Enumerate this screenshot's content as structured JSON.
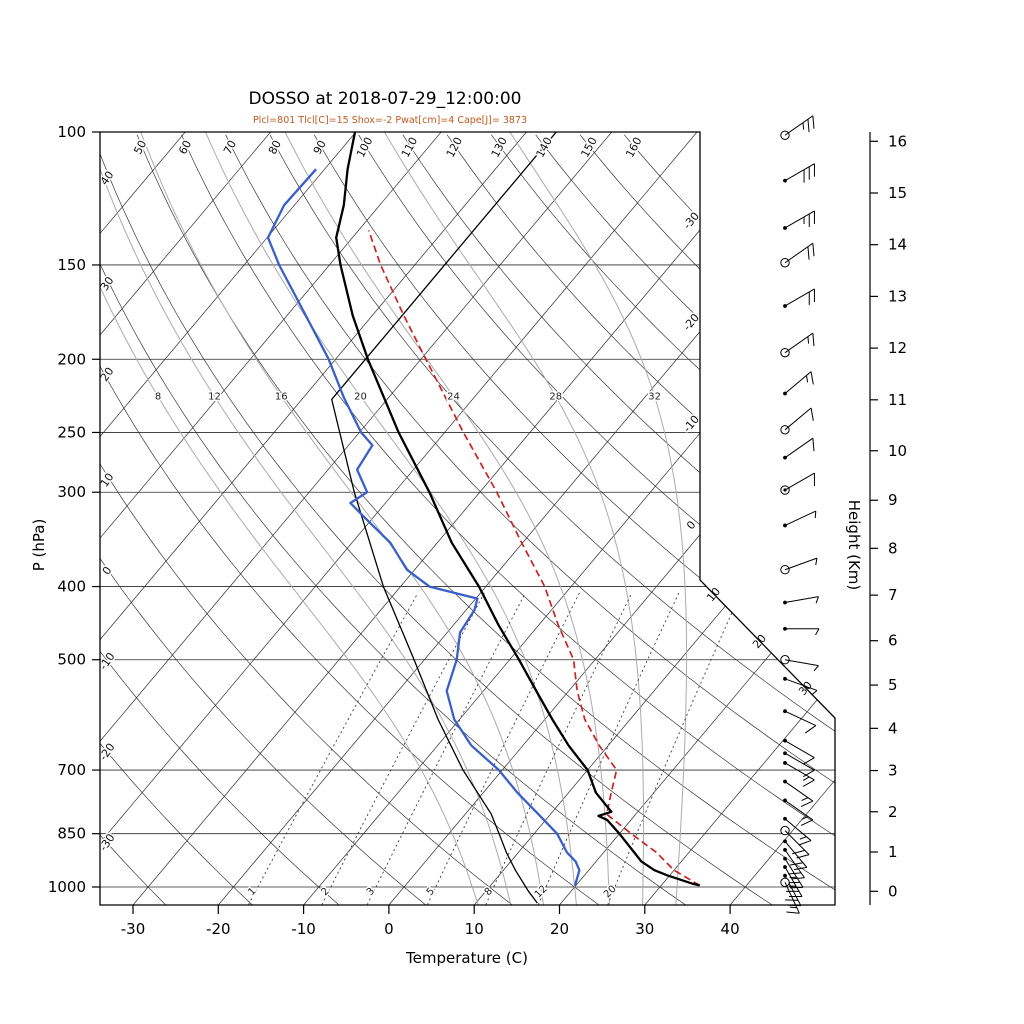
{
  "title": "DOSSO at 2018-07-29_12:00:00",
  "subtitle": "Plcl=801 Tlcl[C]=15 Shox=-2 Pwat[cm]=4 Cape[J]= 3873",
  "colors": {
    "temperature": "#000000",
    "dewpoint": "#3a5fc8",
    "parcel": "#cc2222",
    "std_atm": "#000000",
    "subtitle": "#c05a20",
    "moist_adiabat": "#ababab",
    "mixing_ratio": "#3c3c3c",
    "background_line": "#2b2b2b",
    "frame": "#000000"
  },
  "axes": {
    "pressure": {
      "title": "P (hPa)",
      "ticks": [
        100,
        150,
        200,
        250,
        300,
        400,
        500,
        700,
        850,
        1000
      ]
    },
    "temperature": {
      "title": "Temperature (C)",
      "ticks": [
        -30,
        -20,
        -10,
        0,
        10,
        20,
        30,
        40
      ]
    },
    "height": {
      "title": "Height (Km)",
      "ticks": [
        0,
        1,
        2,
        3,
        4,
        5,
        6,
        7,
        8,
        9,
        10,
        11,
        12,
        13,
        14,
        15,
        16
      ]
    }
  },
  "background": {
    "isotherm_min": -110,
    "isotherm_max": 40,
    "isotherm_step": 10,
    "isotherm_right_labels": [
      -30,
      -20,
      -10,
      0,
      10,
      20,
      30
    ],
    "dry_adiabat_min": -30,
    "dry_adiabat_max": 160,
    "dry_adiabat_step": 10,
    "moist_adiabats": [
      8,
      12,
      16,
      20,
      24,
      28,
      32
    ],
    "moist_label_pressure": 223,
    "mixing_ratios": [
      1,
      2,
      3,
      5,
      8,
      12,
      20
    ],
    "mixing_label_pressure": 1021
  },
  "chart_data": {
    "type": "skewt-log-p",
    "station": "DOSSO",
    "datetime": "2018-07-29_12:00:00",
    "indices": {
      "Plcl": 801,
      "Tlcl_C": 15,
      "Shox": -2,
      "Pwat_cm": 4,
      "Cape_J": 3873
    },
    "pressure_range_hPa": [
      100,
      1050
    ],
    "temperature_range_C": [
      -30,
      40
    ],
    "temperature_profile": [
      [
        995,
        34.5
      ],
      [
        990,
        33.5
      ],
      [
        965,
        29.7
      ],
      [
        950,
        27.7
      ],
      [
        925,
        25.3
      ],
      [
        900,
        23.6
      ],
      [
        850,
        20
      ],
      [
        815,
        17.2
      ],
      [
        805,
        15.8
      ],
      [
        795,
        16.9
      ],
      [
        750,
        13.2
      ],
      [
        700,
        10
      ],
      [
        650,
        5.4
      ],
      [
        600,
        0.9
      ],
      [
        550,
        -3.8
      ],
      [
        500,
        -8.9
      ],
      [
        450,
        -14.7
      ],
      [
        400,
        -20.8
      ],
      [
        350,
        -28.3
      ],
      [
        300,
        -35.9
      ],
      [
        250,
        -45.4
      ],
      [
        200,
        -56.2
      ],
      [
        175,
        -62.3
      ],
      [
        150,
        -68.7
      ],
      [
        138,
        -71.9
      ],
      [
        125,
        -74.2
      ],
      [
        112,
        -77.3
      ],
      [
        100,
        -80.1
      ]
    ],
    "dewpoint_profile": [
      [
        995,
        19.9
      ],
      [
        950,
        18.9
      ],
      [
        925,
        17.6
      ],
      [
        900,
        15.7
      ],
      [
        850,
        12.7
      ],
      [
        800,
        8.5
      ],
      [
        750,
        4
      ],
      [
        700,
        -0.4
      ],
      [
        650,
        -6
      ],
      [
        600,
        -10.6
      ],
      [
        550,
        -14.3
      ],
      [
        500,
        -16.2
      ],
      [
        460,
        -18.5
      ],
      [
        430,
        -19
      ],
      [
        415,
        -19.8
      ],
      [
        400,
        -26.6
      ],
      [
        380,
        -30.9
      ],
      [
        350,
        -35.5
      ],
      [
        325,
        -40.8
      ],
      [
        310,
        -44.1
      ],
      [
        300,
        -43.2
      ],
      [
        280,
        -46.6
      ],
      [
        260,
        -47.2
      ],
      [
        250,
        -49.8
      ],
      [
        225,
        -55.2
      ],
      [
        200,
        -60.8
      ],
      [
        175,
        -67.8
      ],
      [
        150,
        -75.9
      ],
      [
        138,
        -79.9
      ],
      [
        125,
        -81.2
      ],
      [
        112,
        -81
      ]
    ],
    "parcel_curve": [
      [
        995,
        34.5
      ],
      [
        950,
        30
      ],
      [
        900,
        26.2
      ],
      [
        850,
        21.4
      ],
      [
        801,
        16.6
      ],
      [
        750,
        15
      ],
      [
        700,
        13.4
      ],
      [
        650,
        9
      ],
      [
        600,
        4.7
      ],
      [
        550,
        1
      ],
      [
        500,
        -2.5
      ],
      [
        450,
        -7.7
      ],
      [
        400,
        -13.1
      ],
      [
        350,
        -20.1
      ],
      [
        300,
        -28
      ],
      [
        250,
        -37.8
      ],
      [
        200,
        -49.4
      ],
      [
        175,
        -56.3
      ],
      [
        150,
        -64
      ],
      [
        135,
        -68.8
      ]
    ],
    "standard_atmosphere": [
      [
        1050,
        17.2
      ],
      [
        1013,
        15
      ],
      [
        950,
        11.4
      ],
      [
        900,
        8.6
      ],
      [
        850,
        5.9
      ],
      [
        800,
        3
      ],
      [
        700,
        -4.6
      ],
      [
        600,
        -12.5
      ],
      [
        500,
        -21.2
      ],
      [
        400,
        -32
      ],
      [
        300,
        -44.7
      ],
      [
        250,
        -52.3
      ],
      [
        226,
        -56.5
      ],
      [
        200,
        -56.5
      ],
      [
        150,
        -56.5
      ],
      [
        100,
        -56.5
      ]
    ],
    "wind_barbs": [
      {
        "p": 101,
        "spd": 25,
        "dir": 55,
        "marker": "circle"
      },
      {
        "p": 116,
        "spd": 30,
        "dir": 60,
        "marker": "dot"
      },
      {
        "p": 134,
        "spd": 25,
        "dir": 60,
        "marker": "dot"
      },
      {
        "p": 149,
        "spd": 20,
        "dir": 55,
        "marker": "circle"
      },
      {
        "p": 170,
        "spd": 20,
        "dir": 60,
        "marker": "dot"
      },
      {
        "p": 196,
        "spd": 15,
        "dir": 55,
        "marker": "circle"
      },
      {
        "p": 222,
        "spd": 15,
        "dir": 50,
        "marker": "dot"
      },
      {
        "p": 248,
        "spd": 10,
        "dir": 50,
        "marker": "circle"
      },
      {
        "p": 270,
        "spd": 10,
        "dir": 55,
        "marker": "dot"
      },
      {
        "p": 298,
        "spd": 10,
        "dir": 60,
        "marker": "circdot"
      },
      {
        "p": 332,
        "spd": 5,
        "dir": 65,
        "marker": "dot"
      },
      {
        "p": 380,
        "spd": 5,
        "dir": 70,
        "marker": "circle"
      },
      {
        "p": 420,
        "spd": 5,
        "dir": 80,
        "marker": "dot"
      },
      {
        "p": 455,
        "spd": 5,
        "dir": 90,
        "marker": "dot"
      },
      {
        "p": 500,
        "spd": 5,
        "dir": 100,
        "marker": "circle"
      },
      {
        "p": 530,
        "spd": 5,
        "dir": 110,
        "marker": "dot"
      },
      {
        "p": 585,
        "spd": 10,
        "dir": 115,
        "marker": "dot"
      },
      {
        "p": 640,
        "spd": 10,
        "dir": 120,
        "marker": "dot"
      },
      {
        "p": 665,
        "spd": 10,
        "dir": 120,
        "marker": "dot"
      },
      {
        "p": 685,
        "spd": 15,
        "dir": 120,
        "marker": "dot"
      },
      {
        "p": 725,
        "spd": 15,
        "dir": 125,
        "marker": "dot"
      },
      {
        "p": 768,
        "spd": 15,
        "dir": 125,
        "marker": "dot"
      },
      {
        "p": 812,
        "spd": 15,
        "dir": 130,
        "marker": "dot"
      },
      {
        "p": 842,
        "spd": 20,
        "dir": 135,
        "marker": "circle"
      },
      {
        "p": 870,
        "spd": 20,
        "dir": 140,
        "marker": "dot"
      },
      {
        "p": 893,
        "spd": 20,
        "dir": 145,
        "marker": "dot"
      },
      {
        "p": 917,
        "spd": 25,
        "dir": 148,
        "marker": "dot"
      },
      {
        "p": 941,
        "spd": 25,
        "dir": 150,
        "marker": "dot"
      },
      {
        "p": 966,
        "spd": 20,
        "dir": 152,
        "marker": "dot"
      },
      {
        "p": 986,
        "spd": 15,
        "dir": 155,
        "marker": "circle"
      }
    ]
  }
}
